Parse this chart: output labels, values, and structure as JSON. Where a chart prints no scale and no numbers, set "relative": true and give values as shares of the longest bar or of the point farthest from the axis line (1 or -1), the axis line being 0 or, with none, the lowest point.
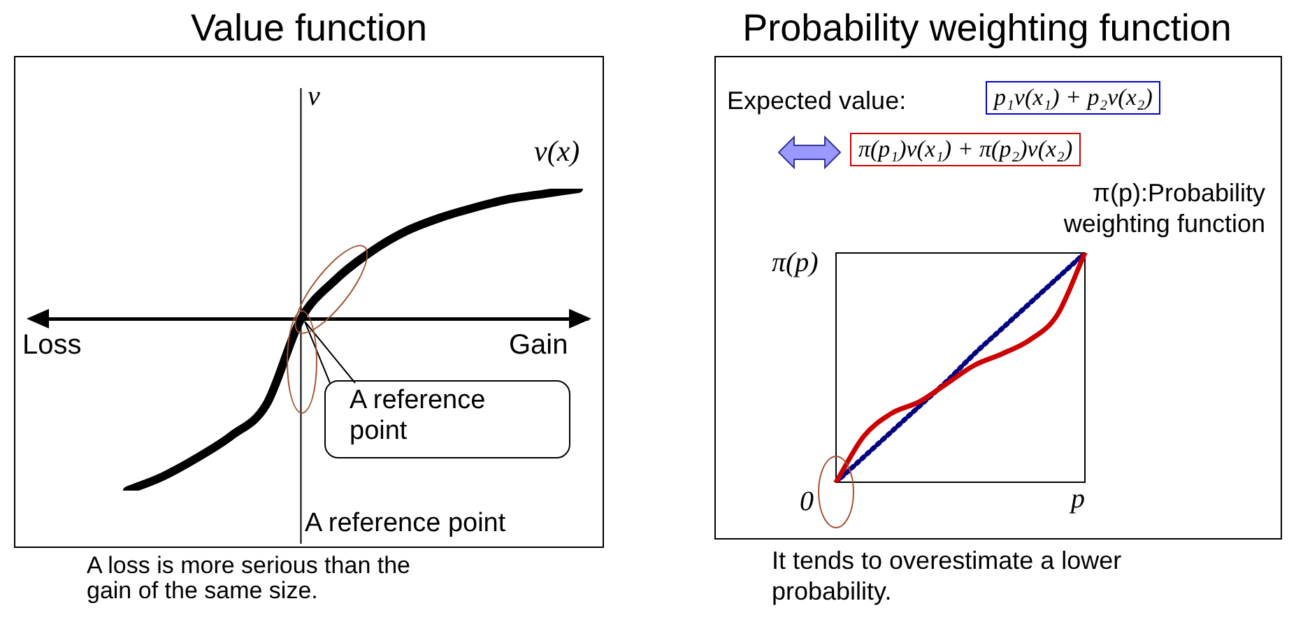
{
  "chart_data": [
    {
      "type": "line",
      "title": "Value function",
      "relative": true,
      "ylabel": "v",
      "legend": false,
      "marker": "none",
      "categories": [
        null,
        null,
        null,
        null,
        null,
        null,
        null,
        null,
        null,
        null,
        null,
        null,
        null,
        null
      ],
      "series": [
        {
          "name": "v(x)",
          "color": "#000000",
          "values": [
            -1,
            -0.92,
            -0.81,
            -0.68,
            -0.5,
            0,
            0.23,
            0.39,
            0.51,
            0.59,
            0.65,
            0.7,
            0.73,
            0.76
          ]
        }
      ],
      "annotations": [
        "Loss",
        "Gain",
        "A reference point",
        "A reference point",
        "A loss is more serious than the gain of the same size."
      ]
    },
    {
      "type": "line",
      "title": "Probability weighting function",
      "relative": true,
      "xlabel": "p",
      "ylabel": "π(p)",
      "legend": false,
      "marker": "none",
      "categories": [
        null,
        null,
        null,
        null,
        null,
        null,
        null,
        null,
        null,
        null
      ],
      "series": [
        {
          "color": "#cc0000",
          "line_style": "solid",
          "values": [
            0,
            0.2,
            0.3,
            0.35,
            0.43,
            0.51,
            0.56,
            0.62,
            0.73,
            1
          ]
        },
        {
          "color": "#000080",
          "line_style": "dotted",
          "values": [
            0,
            0.11,
            0.22,
            0.33,
            0.44,
            0.56,
            0.67,
            0.78,
            0.89,
            1
          ]
        }
      ],
      "annotations": [
        "Expected value:",
        "p₁v(x₁) + p₂v(x₂)",
        "π(p₁)v(x₁) + π(p₂)v(x₂)",
        "π(p):Probability weighting function",
        "0",
        "It tends to overestimate a lower probability."
      ]
    }
  ]
}
